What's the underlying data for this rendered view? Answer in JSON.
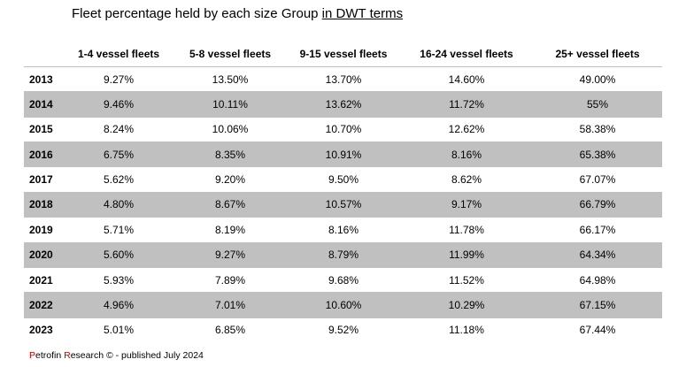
{
  "title": {
    "prefix": "Fleet percentage held by each size Group ",
    "underlined": "in DWT terms"
  },
  "table": {
    "headers": [
      "",
      "1-4 vessel fleets",
      "5-8 vessel fleets",
      "9-15 vessel fleets",
      "16-24 vessel fleets",
      "25+ vessel fleets"
    ],
    "rows": [
      {
        "year": "2013",
        "values": [
          "9.27%",
          "13.50%",
          "13.70%",
          "14.60%",
          "49.00%"
        ]
      },
      {
        "year": "2014",
        "values": [
          "9.46%",
          "10.11%",
          "13.62%",
          "11.72%",
          "55%"
        ]
      },
      {
        "year": "2015",
        "values": [
          "8.24%",
          "10.06%",
          "10.70%",
          "12.62%",
          "58.38%"
        ]
      },
      {
        "year": "2016",
        "values": [
          "6.75%",
          "8.35%",
          "10.91%",
          "8.16%",
          "65.38%"
        ]
      },
      {
        "year": "2017",
        "values": [
          "5.62%",
          "9.20%",
          "9.50%",
          "8.62%",
          "67.07%"
        ]
      },
      {
        "year": "2018",
        "values": [
          "4.80%",
          "8.67%",
          "10.57%",
          "9.17%",
          "66.79%"
        ]
      },
      {
        "year": "2019",
        "values": [
          "5.71%",
          "8.19%",
          "8.16%",
          "11.78%",
          "66.17%"
        ]
      },
      {
        "year": "2020",
        "values": [
          "5.60%",
          "9.27%",
          "8.79%",
          "11.99%",
          "64.34%"
        ]
      },
      {
        "year": "2021",
        "values": [
          "5.93%",
          "7.89%",
          "9.68%",
          "11.52%",
          "64.98%"
        ]
      },
      {
        "year": "2022",
        "values": [
          "4.96%",
          "7.01%",
          "10.60%",
          "10.29%",
          "67.15%"
        ]
      },
      {
        "year": "2023",
        "values": [
          "5.01%",
          "6.85%",
          "9.52%",
          "11.18%",
          "67.44%"
        ]
      }
    ]
  },
  "footer": {
    "p_letter": "P",
    "etrofin": "etrofin ",
    "r_letter": "R",
    "rest": "esearch © - published July 2024"
  },
  "colors": {
    "shaded_row": "#c0c0c0",
    "footer_accent": "#c00000"
  }
}
